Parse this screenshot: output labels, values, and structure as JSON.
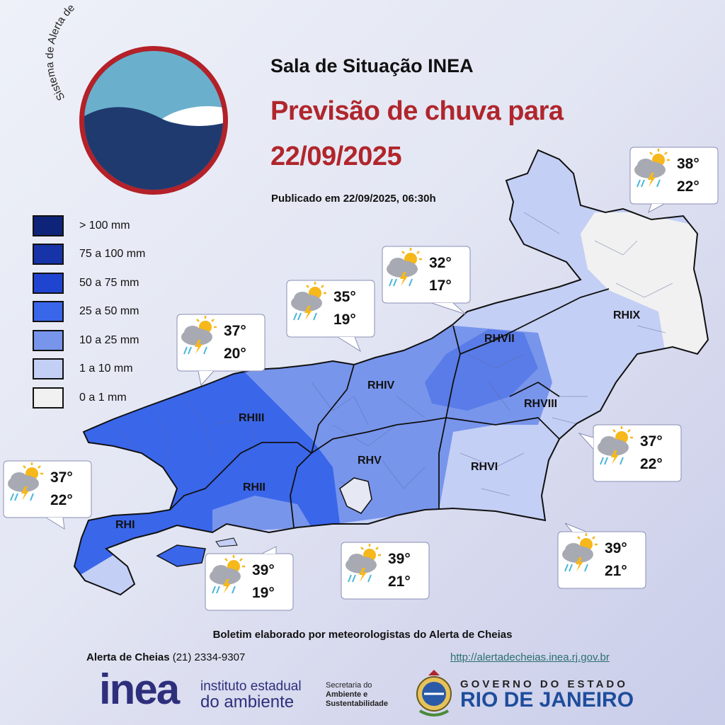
{
  "logo": {
    "arc_text": "Sistema de Alerta de Cheias",
    "colors": {
      "ring": "#b42128",
      "sky": "#6ab0cc",
      "sea": "#1f3a6f",
      "foam": "#ffffff"
    }
  },
  "header": {
    "title": "Sala de Situação INEA",
    "subtitle_line1": "Previsão de chuva para",
    "subtitle_line2": "22/09/2025",
    "published": "Publicado em 22/09/2025, 06:30h"
  },
  "legend": [
    {
      "label": "> 100 mm",
      "color": "#0e2478"
    },
    {
      "label": "75 a 100 mm",
      "color": "#1733a8"
    },
    {
      "label": "50 a 75 mm",
      "color": "#1f45d0"
    },
    {
      "label": "25 a 50 mm",
      "color": "#3a66ea"
    },
    {
      "label": "10 a 25 mm",
      "color": "#7895ec"
    },
    {
      "label": "1 a 10 mm",
      "color": "#c4cff5"
    },
    {
      "label": "0 a 1 mm",
      "color": "#f1f1f1"
    }
  ],
  "regions": [
    {
      "label": "RHI"
    },
    {
      "label": "RHII"
    },
    {
      "label": "RHIII"
    },
    {
      "label": "RHIV"
    },
    {
      "label": "RHV"
    },
    {
      "label": "RHVI"
    },
    {
      "label": "RHVII"
    },
    {
      "label": "RHVIII"
    },
    {
      "label": "RHIX"
    }
  ],
  "forecasts": [
    {
      "max": "38°",
      "min": "22°",
      "icon": "partly-cloudy-thunder-rain-icon"
    },
    {
      "max": "32°",
      "min": "17°",
      "icon": "partly-cloudy-rain-icon"
    },
    {
      "max": "35°",
      "min": "19°",
      "icon": "partly-cloudy-thunder-rain-icon"
    },
    {
      "max": "37°",
      "min": "20°",
      "icon": "partly-cloudy-thunder-rain-icon"
    },
    {
      "max": "37°",
      "min": "22°",
      "icon": "partly-cloudy-thunder-rain-icon"
    },
    {
      "max": "37°",
      "min": "22°",
      "icon": "partly-cloudy-thunder-rain-icon"
    },
    {
      "max": "39°",
      "min": "19°",
      "icon": "partly-cloudy-thunder-rain-icon"
    },
    {
      "max": "39°",
      "min": "21°",
      "icon": "partly-cloudy-thunder-rain-icon"
    },
    {
      "max": "39°",
      "min": "21°",
      "icon": "partly-cloudy-thunder-rain-icon"
    }
  ],
  "footer": {
    "bulletin": "Boletim elaborado por meteorologistas do Alerta de Cheias",
    "contact_name": "Alerta de Cheias",
    "contact_phone": "(21) 2334-9307",
    "url": "http://alertadecheias.inea.rj.gov.br",
    "inea_logo": "inea",
    "inea_name_line1": "instituto estadual",
    "inea_name_line2": "do ambiente",
    "secretaria_line1": "Secretaria do",
    "secretaria_line2": "Ambiente e",
    "secretaria_line3": "Sustentabilidade",
    "gov_line1": "GOVERNO DO ESTADO",
    "gov_line2": "RIO DE JANEIRO"
  }
}
